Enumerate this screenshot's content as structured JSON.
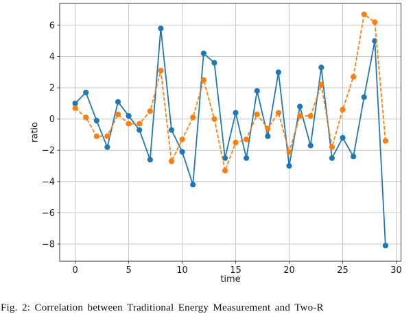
{
  "figure": {
    "caption_partial": "Fig. 2: Correlation between Traditional Energy Measurement and Two-R"
  },
  "chart_data": {
    "type": "line",
    "title": "",
    "xlabel": "time",
    "ylabel": "ratio",
    "x": [
      0,
      1,
      2,
      3,
      4,
      5,
      6,
      7,
      8,
      9,
      10,
      11,
      12,
      13,
      14,
      15,
      16,
      17,
      18,
      19,
      20,
      21,
      22,
      23,
      24,
      25,
      26,
      27,
      28,
      29
    ],
    "series": [
      {
        "name": "series-1-solid-blue",
        "color": "#1f77b4",
        "style": "solid",
        "marker": "circle",
        "values": [
          1.0,
          1.7,
          -0.1,
          -1.8,
          1.1,
          0.2,
          -0.7,
          -2.6,
          5.8,
          -0.7,
          -2.1,
          -4.2,
          4.2,
          3.6,
          -2.5,
          0.4,
          -2.5,
          1.8,
          -1.1,
          3.0,
          -3.0,
          0.8,
          -1.7,
          3.3,
          -2.5,
          -1.2,
          -2.4,
          1.4,
          5.0,
          -8.1
        ]
      },
      {
        "name": "series-2-dashed-orange",
        "color": "#ff7f0e",
        "style": "dashed",
        "marker": "circle",
        "values": [
          0.7,
          0.1,
          -1.1,
          -1.1,
          0.3,
          -0.3,
          -0.3,
          0.5,
          3.1,
          -2.7,
          -1.3,
          0.1,
          2.5,
          0.0,
          -3.3,
          -1.5,
          -1.3,
          0.3,
          -0.6,
          0.4,
          -2.1,
          0.2,
          0.2,
          2.2,
          -1.8,
          0.6,
          2.7,
          6.7,
          6.2,
          -1.4
        ]
      }
    ],
    "xlim": [
      -1.45,
      30.45
    ],
    "ylim": [
      -9.1,
      7.4
    ],
    "xticks": [
      0,
      5,
      10,
      15,
      20,
      25,
      30
    ],
    "yticks": [
      6,
      4,
      2,
      0,
      -2,
      -4,
      -6,
      -8
    ],
    "grid": true,
    "legend_position": "none",
    "grid_color": "#c6c6c6",
    "spine_color": "#3a3a3a",
    "tick_label_color": "#1a1a1a"
  }
}
